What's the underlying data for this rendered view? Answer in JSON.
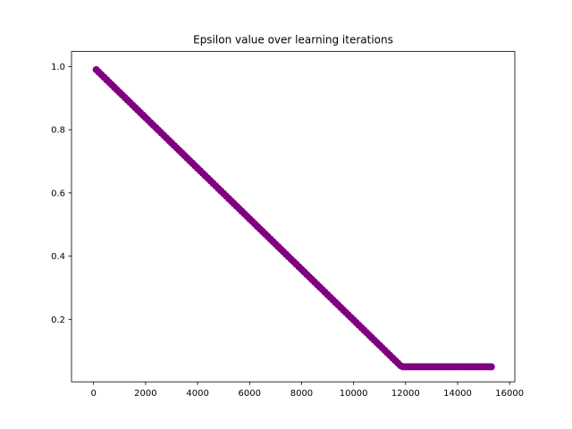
{
  "chart_data": {
    "type": "scatter",
    "title": "Epsilon value over learning iterations",
    "xlabel": "",
    "ylabel": "",
    "xlim": [
      -850,
      16200
    ],
    "ylim": [
      0.0025,
      1.0475
    ],
    "xticks": [
      0,
      2000,
      4000,
      6000,
      8000,
      10000,
      12000,
      14000,
      16000
    ],
    "yticks": [
      0.2,
      0.4,
      0.6,
      0.8,
      1.0
    ],
    "xtick_labels": [
      "0",
      "2000",
      "4000",
      "6000",
      "8000",
      "10000",
      "12000",
      "14000",
      "16000"
    ],
    "ytick_labels": [
      "0.2",
      "0.4",
      "0.6",
      "0.8",
      "1.0"
    ],
    "grid": false,
    "legend": "none",
    "series": [
      {
        "color": "#800080",
        "marker": "circle",
        "line": true,
        "x_start": 100,
        "x_end": 15300,
        "x_step": 100,
        "start_value": 0.99,
        "decay_per_step": 0.008,
        "min_value": 0.05
      }
    ]
  }
}
